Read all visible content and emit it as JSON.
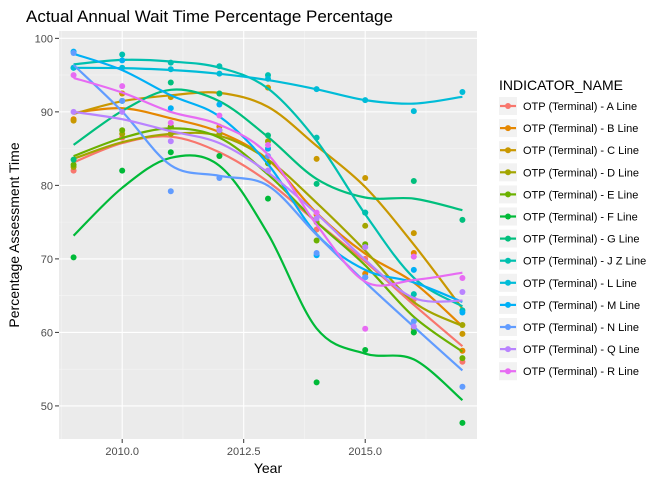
{
  "chart_data": {
    "type": "scatter",
    "title": "Actual Annual Wait Time Percentage Percentage",
    "xlabel": "Year",
    "ylabel": "Percentage Assessment Time",
    "xlim": [
      2008.7,
      2017.3
    ],
    "ylim": [
      45.5,
      101
    ],
    "x_ticks": [
      2010,
      2012.5,
      2015
    ],
    "x_tick_labels": [
      "2010.0",
      "2012.5",
      "2015.0"
    ],
    "y_ticks": [
      50,
      60,
      70,
      80,
      90,
      100
    ],
    "y_tick_labels": [
      "50",
      "60",
      "70",
      "80",
      "90",
      "100"
    ],
    "smooth": true,
    "grid": true,
    "legend": {
      "title": "INDICATOR_NAME",
      "position": "right"
    },
    "x": [
      2009,
      2010,
      2011,
      2012,
      2013,
      2014,
      2015,
      2016,
      2017
    ],
    "series": [
      {
        "name": "OTP (Terminal) - A Line",
        "color": "#F8766D",
        "values": [
          82,
          86.5,
          88,
          84,
          82,
          74,
          70,
          64.5,
          56
        ]
      },
      {
        "name": "OTP (Terminal) - B Line",
        "color": "#E58700",
        "values": [
          89,
          92.5,
          88,
          88,
          85,
          76,
          68,
          70.8,
          57.5
        ]
      },
      {
        "name": "OTP (Terminal) - C Line",
        "color": "#C99800",
        "values": [
          88.8,
          92.5,
          92,
          92.5,
          93.3,
          83.6,
          81,
          73.5,
          59.8
        ]
      },
      {
        "name": "OTP (Terminal) - D Line",
        "color": "#A3A500",
        "values": [
          82.5,
          87,
          87,
          87,
          86,
          75,
          74.5,
          60.5,
          61
        ]
      },
      {
        "name": "OTP (Terminal) - E Line",
        "color": "#6BB100",
        "values": [
          82.8,
          87.5,
          88,
          87.5,
          83,
          72.5,
          72,
          60,
          56.5
        ]
      },
      {
        "name": "OTP (Terminal) - F Line",
        "color": "#00BA38",
        "values": [
          70.2,
          82,
          84.5,
          84,
          78.2,
          53.2,
          57.6,
          60,
          47.7
        ]
      },
      {
        "name": "OTP (Terminal) - G Line",
        "color": "#00BF7D",
        "values": [
          83.5,
          91.5,
          94,
          92.5,
          86.8,
          80.2,
          76.3,
          80.6,
          75.3
        ]
      },
      {
        "name": "OTP (Terminal) - J Z Line",
        "color": "#00C0AF",
        "values": [
          96,
          97.8,
          96.7,
          96.2,
          95,
          86.5,
          76.3,
          65.2,
          63
        ]
      },
      {
        "name": "OTP (Terminal) - L Line",
        "color": "#00BCD8",
        "values": [
          96,
          96,
          95.8,
          95.2,
          94.5,
          93.1,
          91.6,
          90.1,
          92.7
        ]
      },
      {
        "name": "OTP (Terminal) - M Line",
        "color": "#00B0F6",
        "values": [
          98.2,
          97,
          90.5,
          91,
          85,
          70.5,
          67.5,
          68.5,
          62.7
        ]
      },
      {
        "name": "OTP (Terminal) - N Line",
        "color": "#619CFF",
        "values": [
          98,
          91.5,
          79.2,
          81,
          84,
          70.8,
          67.5,
          61.5,
          52.6
        ]
      },
      {
        "name": "OTP (Terminal) - Q Line",
        "color": "#B983FF",
        "values": [
          90,
          90,
          86,
          87.5,
          82,
          75.5,
          71.6,
          60.8,
          65.5
        ]
      },
      {
        "name": "OTP (Terminal) - R Line",
        "color": "#E76BF3",
        "values": [
          95,
          93.5,
          88.5,
          89.5,
          85.5,
          76.3,
          60.5,
          70.3,
          67.4
        ]
      }
    ]
  }
}
